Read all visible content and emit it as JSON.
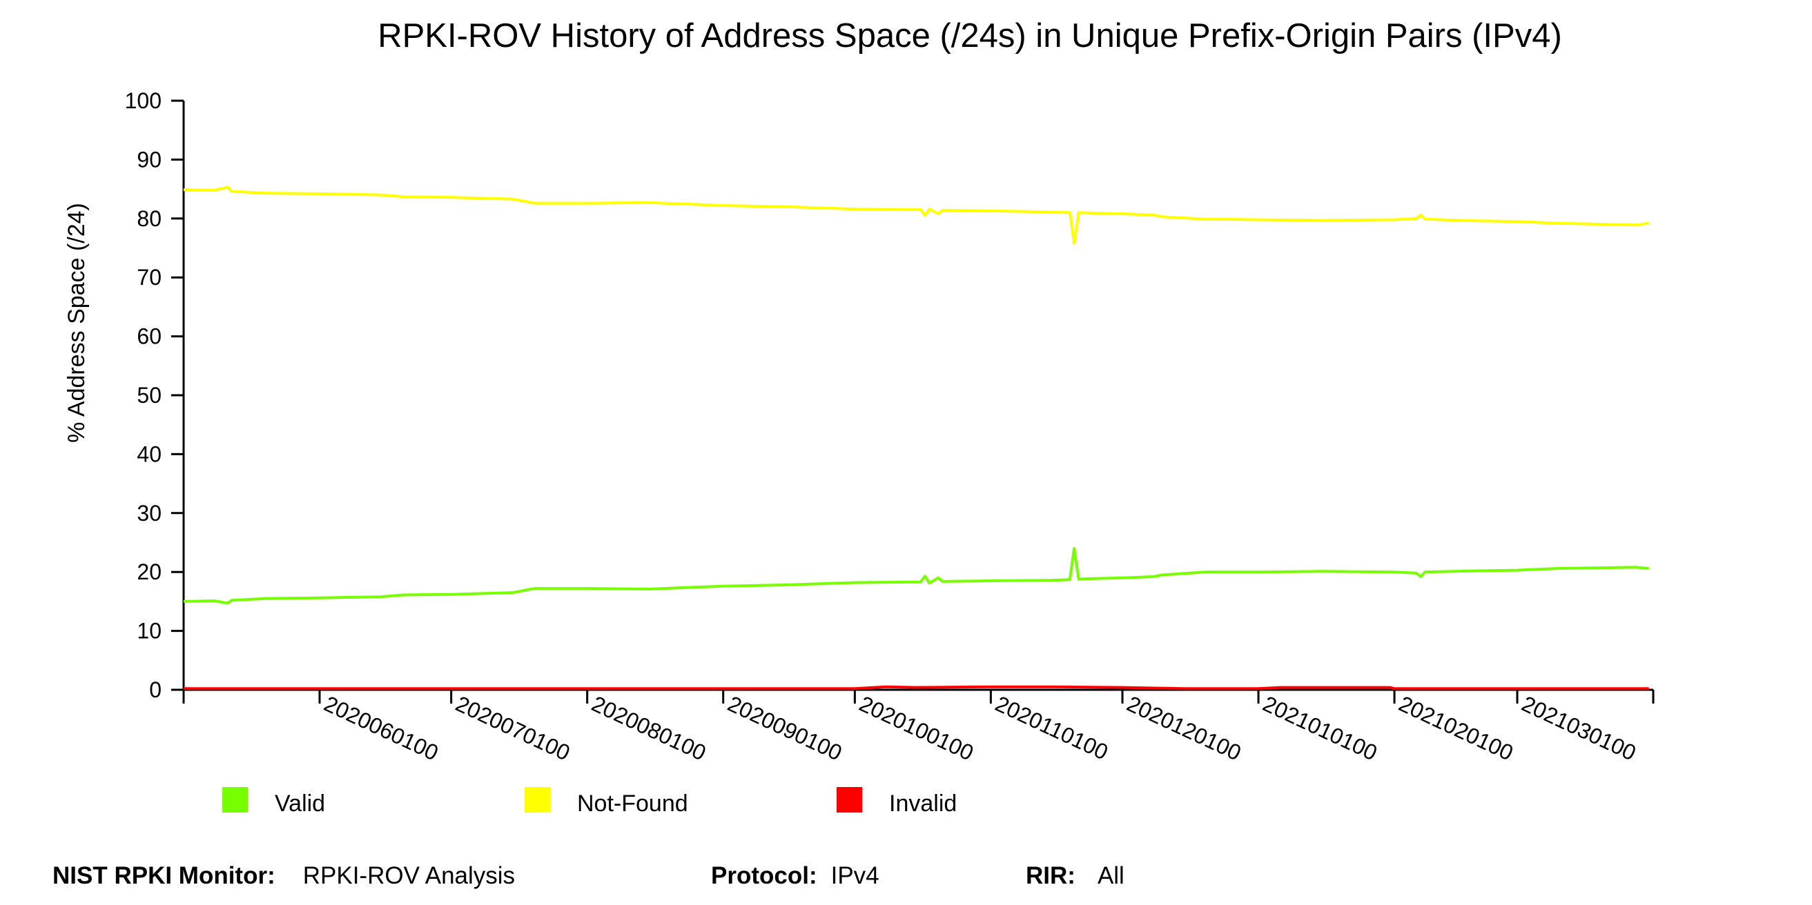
{
  "chart_data": {
    "type": "line",
    "title": "RPKI-ROV History of Address Space (/24s) in Unique Prefix-Origin Pairs (IPv4)",
    "ylabel": "% Address Space (/24)",
    "xlabel": "",
    "ylim": [
      0,
      100
    ],
    "yticks": [
      0,
      10,
      20,
      30,
      40,
      50,
      60,
      70,
      80,
      90,
      100
    ],
    "xlim": [
      "2020-05-01",
      "2021-03-31"
    ],
    "xtick_dates": [
      "2020-06-01",
      "2020-07-01",
      "2020-08-01",
      "2020-09-01",
      "2020-10-01",
      "2020-11-01",
      "2020-12-01",
      "2021-01-01",
      "2021-02-01",
      "2021-03-01"
    ],
    "xtick_labels": [
      "2020060100",
      "2020070100",
      "2020080100",
      "2020090100",
      "2020100100",
      "2020110100",
      "2020120100",
      "2021010100",
      "2021020100",
      "2021030100"
    ],
    "grid": false,
    "legend_position": "bottom",
    "series": [
      {
        "name": "Valid",
        "color": "#77ff00",
        "points": [
          [
            "2020-05-01",
            15.0
          ],
          [
            "2020-05-08",
            15.1
          ],
          [
            "2020-05-11",
            14.7
          ],
          [
            "2020-05-12",
            15.2
          ],
          [
            "2020-05-20",
            15.5
          ],
          [
            "2020-06-01",
            15.6
          ],
          [
            "2020-06-15",
            15.8
          ],
          [
            "2020-06-20",
            16.1
          ],
          [
            "2020-07-01",
            16.2
          ],
          [
            "2020-07-15",
            16.5
          ],
          [
            "2020-07-20",
            17.2
          ],
          [
            "2020-08-01",
            17.2
          ],
          [
            "2020-08-15",
            17.1
          ],
          [
            "2020-09-01",
            17.6
          ],
          [
            "2020-09-15",
            17.8
          ],
          [
            "2020-10-01",
            18.2
          ],
          [
            "2020-10-16",
            18.3
          ],
          [
            "2020-10-17",
            19.3
          ],
          [
            "2020-10-18",
            18.1
          ],
          [
            "2020-10-20",
            19.0
          ],
          [
            "2020-10-21",
            18.4
          ],
          [
            "2020-11-01",
            18.5
          ],
          [
            "2020-11-15",
            18.6
          ],
          [
            "2020-11-19",
            18.7
          ],
          [
            "2020-11-20",
            24.0
          ],
          [
            "2020-11-21",
            18.8
          ],
          [
            "2020-12-01",
            19.0
          ],
          [
            "2020-12-08",
            19.2
          ],
          [
            "2020-12-10",
            19.5
          ],
          [
            "2020-12-20",
            20.0
          ],
          [
            "2021-01-01",
            20.0
          ],
          [
            "2021-01-15",
            20.1
          ],
          [
            "2021-02-01",
            20.0
          ],
          [
            "2021-02-06",
            19.8
          ],
          [
            "2021-02-07",
            19.2
          ],
          [
            "2021-02-08",
            20.0
          ],
          [
            "2021-02-20",
            20.2
          ],
          [
            "2021-03-01",
            20.3
          ],
          [
            "2021-03-10",
            20.6
          ],
          [
            "2021-03-28",
            20.8
          ],
          [
            "2021-03-31",
            20.6
          ]
        ]
      },
      {
        "name": "Not-Found",
        "color": "#ffff00",
        "points": [
          [
            "2020-05-01",
            84.9
          ],
          [
            "2020-05-08",
            84.8
          ],
          [
            "2020-05-11",
            85.3
          ],
          [
            "2020-05-12",
            84.6
          ],
          [
            "2020-05-20",
            84.3
          ],
          [
            "2020-06-01",
            84.2
          ],
          [
            "2020-06-15",
            84.0
          ],
          [
            "2020-06-20",
            83.7
          ],
          [
            "2020-07-01",
            83.6
          ],
          [
            "2020-07-15",
            83.3
          ],
          [
            "2020-07-20",
            82.6
          ],
          [
            "2020-08-01",
            82.6
          ],
          [
            "2020-08-15",
            82.7
          ],
          [
            "2020-09-01",
            82.2
          ],
          [
            "2020-09-15",
            82.0
          ],
          [
            "2020-10-01",
            81.6
          ],
          [
            "2020-10-16",
            81.5
          ],
          [
            "2020-10-17",
            80.5
          ],
          [
            "2020-10-18",
            81.6
          ],
          [
            "2020-10-20",
            80.8
          ],
          [
            "2020-10-21",
            81.4
          ],
          [
            "2020-11-01",
            81.3
          ],
          [
            "2020-11-15",
            81.1
          ],
          [
            "2020-11-19",
            81.0
          ],
          [
            "2020-11-20",
            75.8
          ],
          [
            "2020-11-21",
            81.0
          ],
          [
            "2020-12-01",
            80.8
          ],
          [
            "2020-12-08",
            80.6
          ],
          [
            "2020-12-10",
            80.3
          ],
          [
            "2020-12-20",
            79.9
          ],
          [
            "2021-01-01",
            79.8
          ],
          [
            "2021-01-15",
            79.7
          ],
          [
            "2021-02-01",
            79.8
          ],
          [
            "2021-02-06",
            80.0
          ],
          [
            "2021-02-07",
            80.6
          ],
          [
            "2021-02-08",
            79.9
          ],
          [
            "2021-02-20",
            79.6
          ],
          [
            "2021-03-01",
            79.5
          ],
          [
            "2021-03-10",
            79.2
          ],
          [
            "2021-03-28",
            78.9
          ],
          [
            "2021-03-31",
            79.2
          ]
        ]
      },
      {
        "name": "Invalid",
        "color": "#ff0000",
        "points": [
          [
            "2020-05-01",
            0.2
          ],
          [
            "2020-06-01",
            0.2
          ],
          [
            "2020-07-01",
            0.2
          ],
          [
            "2020-08-01",
            0.2
          ],
          [
            "2020-09-01",
            0.2
          ],
          [
            "2020-10-01",
            0.2
          ],
          [
            "2020-10-08",
            0.5
          ],
          [
            "2020-10-15",
            0.4
          ],
          [
            "2020-11-01",
            0.5
          ],
          [
            "2020-11-15",
            0.5
          ],
          [
            "2020-12-01",
            0.4
          ],
          [
            "2020-12-15",
            0.2
          ],
          [
            "2021-01-01",
            0.2
          ],
          [
            "2021-01-06",
            0.4
          ],
          [
            "2021-01-31",
            0.4
          ],
          [
            "2021-02-01",
            0.2
          ],
          [
            "2021-03-01",
            0.2
          ],
          [
            "2021-03-31",
            0.2
          ]
        ]
      }
    ]
  },
  "footer": {
    "monitor_label": "NIST RPKI Monitor:",
    "monitor_value": "RPKI-ROV Analysis",
    "protocol_label": "Protocol:",
    "protocol_value": "IPv4",
    "rir_label": "RIR:",
    "rir_value": "All"
  }
}
